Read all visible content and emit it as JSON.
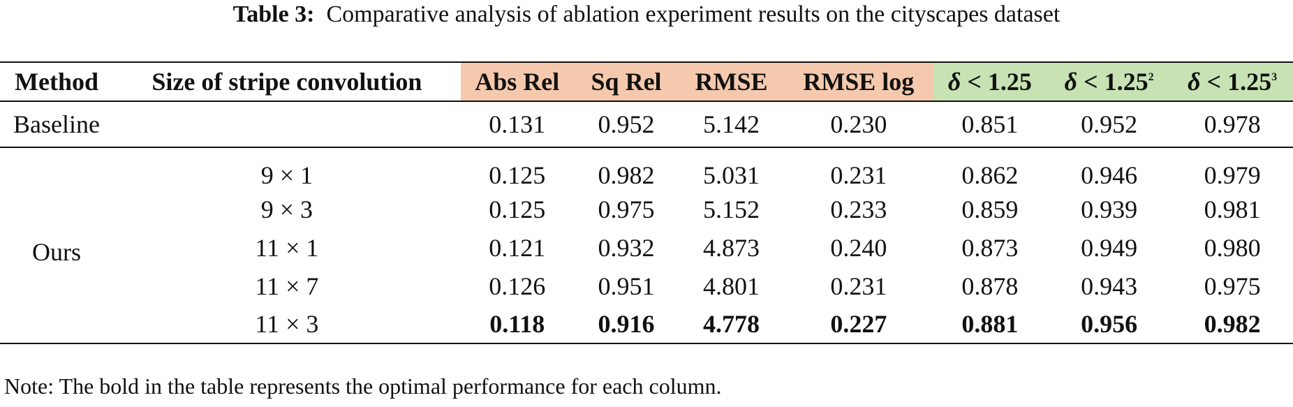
{
  "caption": {
    "label": "Table 3:",
    "text": "Comparative analysis of ablation experiment results on the cityscapes dataset"
  },
  "headers": {
    "method": "Method",
    "size": "Size of stripe convolution",
    "abs_rel": "Abs Rel",
    "sq_rel": "Sq Rel",
    "rmse": "RMSE",
    "rmse_log": "RMSE log",
    "d1": {
      "symbol": "δ",
      "rest": " < 1.25",
      "sup": ""
    },
    "d2": {
      "symbol": "δ",
      "rest": " < 1.25",
      "sup": "2"
    },
    "d3": {
      "symbol": "δ",
      "rest": " < 1.25",
      "sup": "3"
    }
  },
  "colors": {
    "error_header_bg": "#f5c9ad",
    "accuracy_header_bg": "#c8e2b4"
  },
  "baseline": {
    "method": "Baseline",
    "size": "",
    "values": [
      "0.131",
      "0.952",
      "5.142",
      "0.230",
      "0.851",
      "0.952",
      "0.978"
    ]
  },
  "ours": {
    "method": "Ours",
    "rows": [
      {
        "size": "9 × 1",
        "values": [
          "0.125",
          "0.982",
          "5.031",
          "0.231",
          "0.862",
          "0.946",
          "0.979"
        ]
      },
      {
        "size": "9 × 3",
        "values": [
          "0.125",
          "0.975",
          "5.152",
          "0.233",
          "0.859",
          "0.939",
          "0.981"
        ]
      },
      {
        "size": "11 × 1",
        "values": [
          "0.121",
          "0.932",
          "4.873",
          "0.240",
          "0.873",
          "0.949",
          "0.980"
        ]
      },
      {
        "size": "11 × 7",
        "values": [
          "0.126",
          "0.951",
          "4.801",
          "0.231",
          "0.878",
          "0.943",
          "0.975"
        ]
      },
      {
        "size": "11 × 3",
        "values": [
          "0.118",
          "0.916",
          "4.778",
          "0.227",
          "0.881",
          "0.956",
          "0.982"
        ]
      }
    ]
  },
  "note": "Note: The bold in the table represents the optimal performance for each column."
}
